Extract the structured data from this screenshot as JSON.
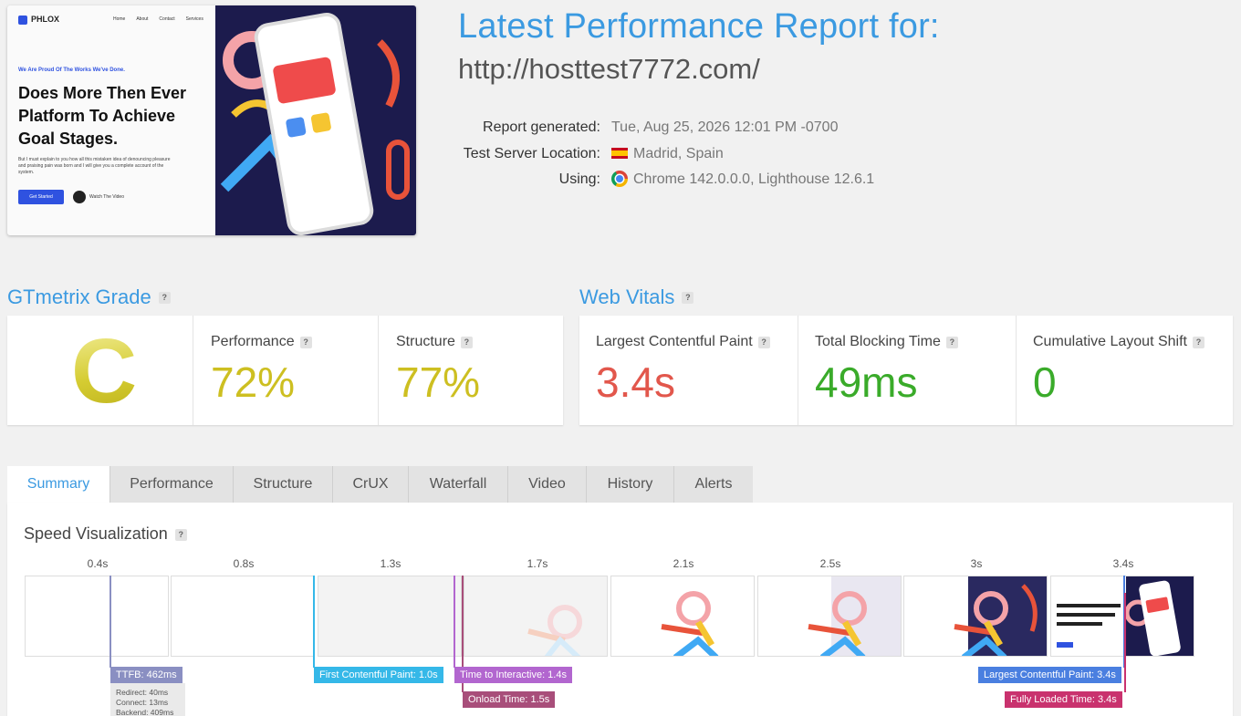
{
  "screenshot": {
    "brand": "PHLOX",
    "nav_links": [
      "Home",
      "About",
      "Contact",
      "Services"
    ],
    "tagline": "We Are Proud Of The Works We've Done.",
    "headline": "Does More Then Ever Platform To Achieve Goal Stages.",
    "paragraph": "But I must explain to you how all this mistaken idea of denouncing pleasure and praising pain was born and I will give you a complete account of the system.",
    "cta": "Get Started",
    "video_link": "Watch The Video"
  },
  "report": {
    "title": "Latest Performance Report for:",
    "url": "http://hosttest7772.com/",
    "labels": {
      "generated": "Report generated:",
      "location": "Test Server Location:",
      "using": "Using:"
    },
    "values": {
      "generated": "Tue, Aug 25, 2026 12:01 PM -0700",
      "location": "Madrid, Spain",
      "using": "Chrome 142.0.0.0, Lighthouse 12.6.1"
    }
  },
  "grade": {
    "title": "GTmetrix Grade",
    "letter": "C",
    "performance_label": "Performance",
    "performance_value": "72%",
    "structure_label": "Structure",
    "structure_value": "77%"
  },
  "vitals": {
    "title": "Web Vitals",
    "lcp_label": "Largest Contentful Paint",
    "lcp_value": "3.4s",
    "tbt_label": "Total Blocking Time",
    "tbt_value": "49ms",
    "cls_label": "Cumulative Layout Shift",
    "cls_value": "0"
  },
  "colors": {
    "accent": "#3b9ae1",
    "grade_c": "#cdbf21",
    "bad": "#e2574c",
    "good": "#3aab2a"
  },
  "tabs": [
    "Summary",
    "Performance",
    "Structure",
    "CrUX",
    "Waterfall",
    "Video",
    "History",
    "Alerts"
  ],
  "speed": {
    "title": "Speed Visualization",
    "ticks": [
      "0.4s",
      "0.8s",
      "1.3s",
      "1.7s",
      "2.1s",
      "2.5s",
      "3s",
      "3.4s"
    ],
    "markers": {
      "ttfb": "TTFB: 462ms",
      "fcp": "First Contentful Paint: 1.0s",
      "tti": "Time to Interactive: 1.4s",
      "onload": "Onload Time: 1.5s",
      "lcp": "Largest Contentful Paint: 3.4s",
      "fully": "Fully Loaded Time: 3.4s"
    },
    "ttfb_details": [
      "Redirect: 40ms",
      "Connect: 13ms",
      "Backend: 409ms"
    ]
  }
}
